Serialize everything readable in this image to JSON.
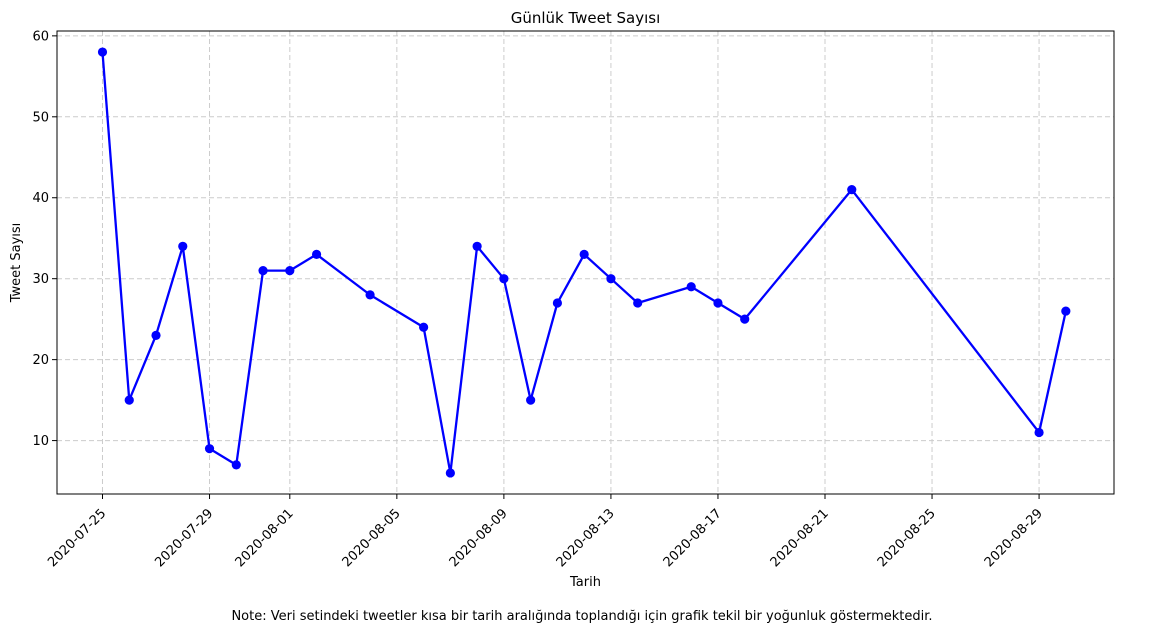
{
  "chart_data": {
    "type": "line",
    "title": "Günlük Tweet Sayısı",
    "xlabel": "Tarih",
    "ylabel": "Tweet Sayısı",
    "note": "Note: Veri setindeki tweetler kısa bir tarih aralığında toplandığı için grafik tekil bir yoğunluk göstermektedir.",
    "x_axis_type": "date",
    "xlim": [
      "2020-07-23.3",
      "2020-08-31.8"
    ],
    "ylim": [
      3.4,
      60.6
    ],
    "x_ticks": [
      "2020-07-25",
      "2020-07-29",
      "2020-08-01",
      "2020-08-05",
      "2020-08-09",
      "2020-08-13",
      "2020-08-17",
      "2020-08-21",
      "2020-08-25",
      "2020-08-29"
    ],
    "y_ticks": [
      10,
      20,
      30,
      40,
      50,
      60
    ],
    "grid": true,
    "line_color": "#0000ff",
    "marker_color": "#0000ff",
    "series": [
      {
        "x": [
          "2020-07-25",
          "2020-07-26",
          "2020-07-27",
          "2020-07-28",
          "2020-07-29",
          "2020-07-30",
          "2020-07-31",
          "2020-08-01",
          "2020-08-02",
          "2020-08-04",
          "2020-08-06",
          "2020-08-07",
          "2020-08-08",
          "2020-08-09",
          "2020-08-10",
          "2020-08-11",
          "2020-08-12",
          "2020-08-13",
          "2020-08-14",
          "2020-08-16",
          "2020-08-17",
          "2020-08-18",
          "2020-08-22",
          "2020-08-29",
          "2020-08-30"
        ],
        "values": [
          58,
          15,
          23,
          34,
          9,
          7,
          31,
          31,
          33,
          28,
          24,
          6,
          34,
          30,
          15,
          27,
          33,
          30,
          27,
          29,
          27,
          25,
          41,
          11,
          26
        ]
      }
    ]
  }
}
